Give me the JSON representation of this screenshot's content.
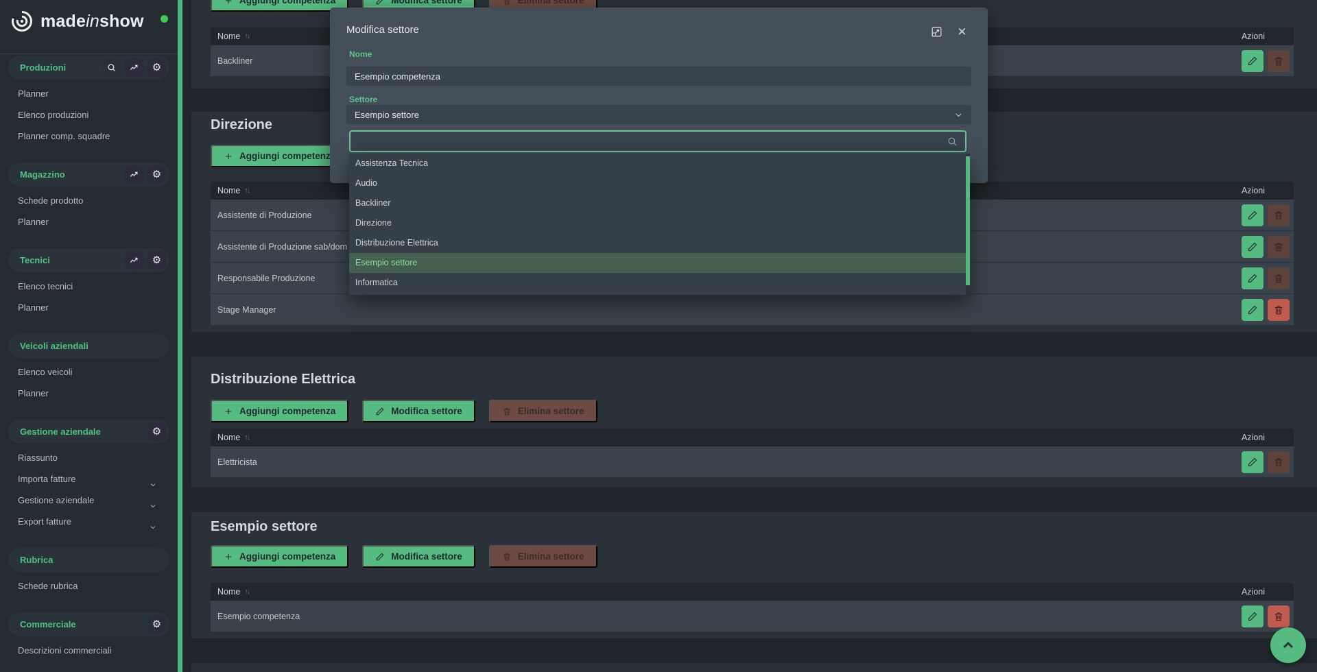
{
  "logo": {
    "made": "made",
    "in": "in",
    "show": "show",
    "status_dot_color": "#3fcb4e"
  },
  "sidebar": {
    "sections": [
      {
        "label": "Produzioni",
        "icons": [
          "search-icon",
          "chart-icon",
          "gear-icon"
        ],
        "items": [
          {
            "label": "Planner"
          },
          {
            "label": "Elenco produzioni"
          },
          {
            "label": "Planner comp. squadre"
          }
        ]
      },
      {
        "label": "Magazzino",
        "icons": [
          "chart-icon",
          "gear-icon"
        ],
        "items": [
          {
            "label": "Schede prodotto"
          },
          {
            "label": "Planner"
          }
        ]
      },
      {
        "label": "Tecnici",
        "icons": [
          "chart-icon",
          "gear-icon"
        ],
        "items": [
          {
            "label": "Elenco tecnici"
          },
          {
            "label": "Planner"
          }
        ]
      },
      {
        "label": "Veicoli aziendali",
        "icons": [],
        "items": [
          {
            "label": "Elenco veicoli"
          },
          {
            "label": "Planner"
          }
        ]
      },
      {
        "label": "Gestione aziendale",
        "icons": [
          "gear-icon"
        ],
        "items": [
          {
            "label": "Riassunto"
          },
          {
            "label": "Importa fatture",
            "chevron": true
          },
          {
            "label": "Gestione aziendale",
            "chevron": true
          },
          {
            "label": "Export fatture",
            "chevron": true
          }
        ]
      },
      {
        "label": "Rubrica",
        "icons": [],
        "items": [
          {
            "label": "Schede rubrica"
          }
        ]
      },
      {
        "label": "Commerciale",
        "icons": [
          "gear-icon"
        ],
        "items": [
          {
            "label": "Descrizioni commerciali"
          }
        ]
      }
    ]
  },
  "content": {
    "add_label": "Aggiungi competenza",
    "edit_label": "Modifica settore",
    "delete_label": "Elimina settore",
    "nome_header": "Nome",
    "sort_glyph": "↑↓",
    "azioni_header": "Azioni",
    "sections": [
      {
        "title": "",
        "rows": [
          {
            "name": "Backliner",
            "active_delete": false
          }
        ]
      },
      {
        "title": "Direzione",
        "rows": [
          {
            "name": "Assistente di Produzione",
            "active_delete": false
          },
          {
            "name": "Assistente di Produzione sab/dom",
            "active_delete": false
          },
          {
            "name": "Responsabile Produzione",
            "active_delete": false
          },
          {
            "name": "Stage Manager",
            "active_delete": true
          }
        ]
      },
      {
        "title": "Distribuzione Elettrica",
        "rows": [
          {
            "name": "Elettricista",
            "active_delete": false
          }
        ]
      },
      {
        "title": "Esempio settore",
        "rows": [
          {
            "name": "Esempio competenza",
            "active_delete": true
          }
        ]
      }
    ]
  },
  "modal": {
    "title": "Modifica settore",
    "name_label": "Nome",
    "name_value": "Esempio competenza",
    "sector_label": "Settore",
    "sector_value": "Esempio settore",
    "search_value": "",
    "options": [
      "Assistenza Tecnica",
      "Audio",
      "Backliner",
      "Direzione",
      "Distribuzione Elettrica",
      "Esempio settore",
      "Informatica"
    ],
    "selected_option": "Esempio settore",
    "close_glyph": "✕"
  },
  "colors": {
    "accent_green": "#55bb81",
    "sidebar_green": "#4ec183",
    "danger_red": "#c05b50",
    "scrollbar_green": "#4cb57d"
  }
}
